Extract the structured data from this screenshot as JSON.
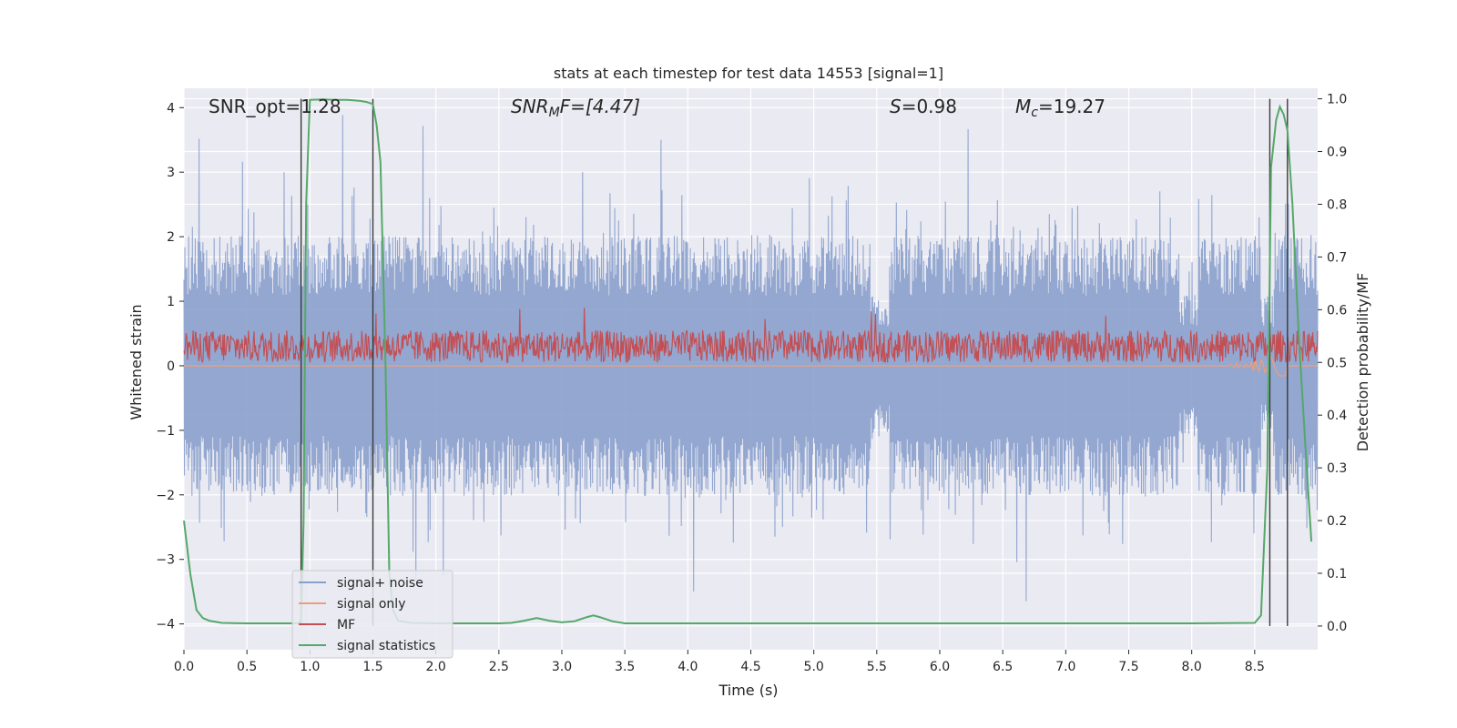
{
  "chart_data": {
    "type": "line",
    "title": "stats at each timestep for test data 14553 [signal=1]",
    "xlabel": "Time (s)",
    "ylabel": "Whitened strain",
    "y2label": "Detection probability/MF",
    "xlim": [
      0.0,
      9.0
    ],
    "ylim": [
      -4.4,
      4.3
    ],
    "y2lim": [
      -0.045,
      1.02
    ],
    "x_ticks": [
      "0.0",
      "0.5",
      "1.0",
      "1.5",
      "2.0",
      "2.5",
      "3.0",
      "3.5",
      "4.0",
      "4.5",
      "5.0",
      "5.5",
      "6.0",
      "6.5",
      "7.0",
      "7.5",
      "8.0",
      "8.5"
    ],
    "y_ticks": [
      "4",
      "3",
      "2",
      "1",
      "0",
      "−1",
      "−2",
      "−3",
      "−4"
    ],
    "y2_ticks": [
      "1.0",
      "0.9",
      "0.8",
      "0.7",
      "0.6",
      "0.5",
      "0.4",
      "0.3",
      "0.2",
      "0.1",
      "0.0"
    ],
    "annotations": {
      "snr_opt": "SNR_opt=1.28",
      "snr_mf_main": "SNR",
      "snr_mf_sub": "M",
      "snr_mf_rest": "F=[4.47]",
      "s_label": "S",
      "s_value": "=0.98",
      "mc_main": "M",
      "mc_sub": "c",
      "mc_value": "=19.27"
    },
    "legend": {
      "placement": "lower-left",
      "entries": [
        "signal+ noise",
        "signal only",
        "MF",
        "signal statistics"
      ]
    },
    "colors": {
      "noise": "#8aa0cc",
      "signal": "#e89f80",
      "mf": "#c44e52",
      "stat": "#55a868",
      "vline": "#3a3a3a",
      "background": "#eaeaf2",
      "grid": "#ffffff"
    },
    "series": [
      {
        "name": "signal statistics",
        "axis": "right",
        "x": [
          0.0,
          0.05,
          0.1,
          0.15,
          0.2,
          0.3,
          0.5,
          0.7,
          0.9,
          0.93,
          0.95,
          0.97,
          1.0,
          1.1,
          1.2,
          1.3,
          1.4,
          1.45,
          1.5,
          1.53,
          1.56,
          1.6,
          1.63,
          1.66,
          1.7,
          1.8,
          2.0,
          2.5,
          2.6,
          2.7,
          2.8,
          2.9,
          3.0,
          3.1,
          3.2,
          3.25,
          3.3,
          3.4,
          3.5,
          4.0,
          5.0,
          6.0,
          7.0,
          8.0,
          8.5,
          8.55,
          8.6,
          8.63,
          8.67,
          8.7,
          8.73,
          8.76,
          8.8,
          8.85,
          8.9,
          8.95
        ],
        "values": [
          0.2,
          0.1,
          0.03,
          0.015,
          0.01,
          0.006,
          0.005,
          0.005,
          0.005,
          0.01,
          0.2,
          0.8,
          0.998,
          0.999,
          0.998,
          0.998,
          0.996,
          0.994,
          0.99,
          0.95,
          0.88,
          0.5,
          0.1,
          0.03,
          0.01,
          0.006,
          0.005,
          0.005,
          0.006,
          0.01,
          0.015,
          0.01,
          0.007,
          0.009,
          0.017,
          0.02,
          0.017,
          0.009,
          0.005,
          0.005,
          0.005,
          0.005,
          0.005,
          0.005,
          0.006,
          0.02,
          0.3,
          0.87,
          0.96,
          0.985,
          0.97,
          0.94,
          0.8,
          0.55,
          0.35,
          0.16
        ]
      }
    ],
    "vertical_markers_s": [
      0.93,
      1.5,
      8.62,
      8.76
    ],
    "noise_envelope": {
      "median_abs_peak": 1.55,
      "max_positive_peak": 3.95,
      "min_negative_peak": -3.65,
      "dip_regions_s": [
        [
          5.45,
          5.6
        ],
        [
          7.9,
          8.05
        ],
        [
          8.55,
          8.65
        ]
      ]
    },
    "mf_band": {
      "center": 0.3,
      "half_range": 0.25,
      "peak": 0.9
    }
  }
}
